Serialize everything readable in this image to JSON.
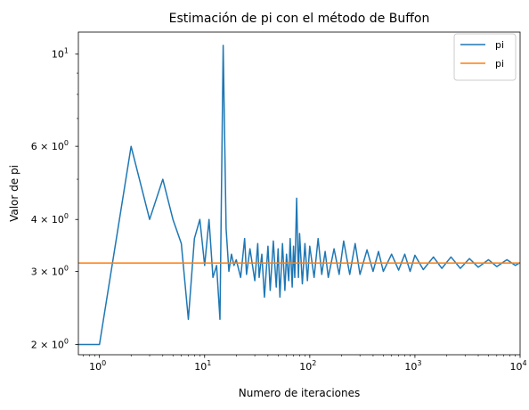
{
  "chart_data": {
    "type": "line",
    "title": "Estimación de pi con el método de Buffon",
    "xlabel": "Numero de iteraciones",
    "ylabel": "Valor de pi",
    "xscale": "log",
    "yscale": "log",
    "xlim": [
      0.63,
      10000
    ],
    "ylim": [
      1.89,
      11.3
    ],
    "grid": false,
    "legend_position": "top-right",
    "x_ticks": [
      {
        "label": "10",
        "exp": "0",
        "value": 1
      },
      {
        "label": "10",
        "exp": "1",
        "value": 10
      },
      {
        "label": "10",
        "exp": "2",
        "value": 100
      },
      {
        "label": "10",
        "exp": "3",
        "value": 1000
      },
      {
        "label": "10",
        "exp": "4",
        "value": 10000
      }
    ],
    "y_ticks": [
      {
        "label": "2 × 10",
        "exp": "0",
        "value": 2
      },
      {
        "label": "3 × 10",
        "exp": "0",
        "value": 3
      },
      {
        "label": "4 × 10",
        "exp": "0",
        "value": 4
      },
      {
        "label": "6 × 10",
        "exp": "0",
        "value": 6
      },
      {
        "label": "10",
        "exp": "1",
        "value": 10
      }
    ],
    "series": [
      {
        "name": "pi",
        "color": "#1f77b4",
        "x": [
          0,
          1,
          2,
          3,
          4,
          5,
          6,
          7,
          8,
          9,
          10,
          11,
          12,
          13,
          14,
          15,
          16,
          17,
          18,
          19,
          20,
          22,
          24,
          25,
          27,
          30,
          32,
          33,
          35,
          37,
          40,
          42,
          45,
          48,
          50,
          52,
          55,
          58,
          60,
          63,
          65,
          68,
          70,
          72,
          75,
          78,
          80,
          85,
          90,
          95,
          100,
          110,
          120,
          130,
          140,
          150,
          170,
          190,
          210,
          240,
          270,
          300,
          350,
          400,
          450,
          500,
          600,
          700,
          800,
          900,
          1000,
          1200,
          1500,
          1800,
          2200,
          2700,
          3300,
          4000,
          5000,
          6000,
          7500,
          9000,
          10000
        ],
        "y": [
          2.0,
          2.0,
          6.0,
          4.0,
          5.0,
          4.0,
          3.5,
          2.3,
          3.6,
          4.0,
          3.1,
          4.0,
          2.9,
          3.1,
          2.3,
          10.5,
          3.8,
          3.0,
          3.3,
          3.1,
          3.2,
          2.9,
          3.6,
          2.95,
          3.4,
          2.85,
          3.5,
          2.9,
          3.3,
          2.6,
          3.45,
          2.7,
          3.55,
          2.75,
          3.4,
          2.6,
          3.5,
          2.7,
          3.3,
          2.85,
          3.6,
          2.75,
          3.45,
          2.9,
          4.5,
          2.9,
          3.7,
          2.8,
          3.5,
          2.85,
          3.45,
          2.9,
          3.6,
          2.95,
          3.35,
          2.9,
          3.4,
          2.95,
          3.55,
          2.95,
          3.5,
          2.95,
          3.38,
          3.0,
          3.35,
          3.0,
          3.3,
          3.02,
          3.3,
          3.0,
          3.28,
          3.03,
          3.25,
          3.05,
          3.25,
          3.05,
          3.22,
          3.07,
          3.2,
          3.08,
          3.2,
          3.1,
          3.15
        ]
      },
      {
        "name": "pi",
        "color": "#ff7f0e",
        "x": [
          0,
          10000
        ],
        "y": [
          3.14159,
          3.14159
        ]
      }
    ]
  }
}
